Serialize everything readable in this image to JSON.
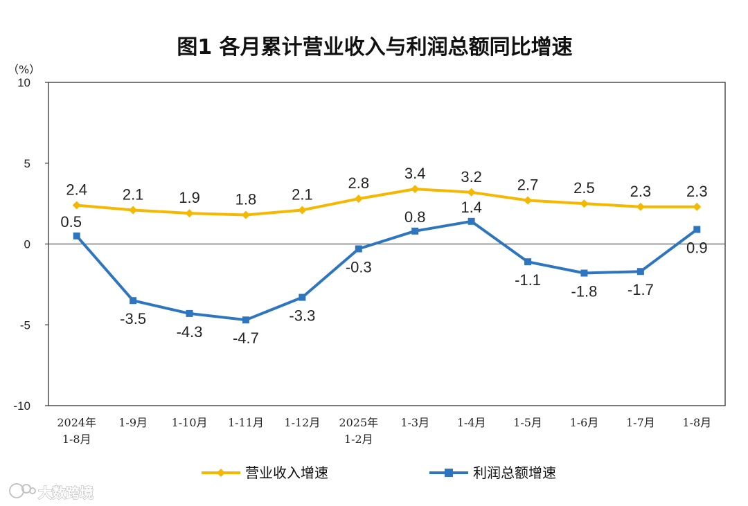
{
  "chart_data": {
    "type": "line",
    "title": "图1  各月累计营业收入与利润总额同比增速",
    "ylabel": "（%）",
    "xlabel": "",
    "ylim": [
      -10,
      10
    ],
    "yticks": [
      10,
      5,
      0,
      -5,
      -10
    ],
    "categories": [
      [
        "2024年",
        "1-8月"
      ],
      [
        "1-9月"
      ],
      [
        "1-10月"
      ],
      [
        "1-11月"
      ],
      [
        "1-12月"
      ],
      [
        "2025年",
        "1-2月"
      ],
      [
        "1-3月"
      ],
      [
        "1-4月"
      ],
      [
        "1-5月"
      ],
      [
        "1-6月"
      ],
      [
        "1-7月"
      ],
      [
        "1-8月"
      ]
    ],
    "series": [
      {
        "name": "营业收入增速",
        "color": "#f5b800",
        "marker": "diamond",
        "values": [
          2.4,
          2.1,
          1.9,
          1.8,
          2.1,
          2.8,
          3.4,
          3.2,
          2.7,
          2.5,
          2.3,
          2.3
        ],
        "labels": [
          "2.4",
          "2.1",
          "1.9",
          "1.8",
          "2.1",
          "2.8",
          "3.4",
          "3.2",
          "2.7",
          "2.5",
          "2.3",
          "2.3"
        ]
      },
      {
        "name": "利润总额增速",
        "color": "#2e75c0",
        "marker": "square",
        "values": [
          0.5,
          -3.5,
          -4.3,
          -4.7,
          -3.3,
          -0.3,
          0.8,
          1.4,
          -1.1,
          -1.8,
          -1.7,
          0.9
        ],
        "labels": [
          "0.5",
          "-3.5",
          "-4.3",
          "-4.7",
          "-3.3",
          "-0.3",
          "0.8",
          "1.4",
          "-1.1",
          "-1.8",
          "-1.7",
          "0.9"
        ]
      }
    ],
    "legend": "bottom"
  },
  "watermark": {
    "text": "大数跨境"
  }
}
